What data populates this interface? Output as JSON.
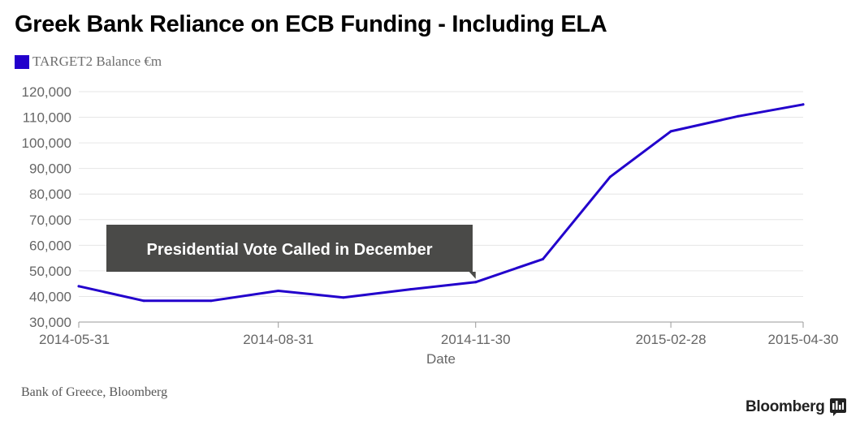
{
  "title": "Greek Bank Reliance on ECB Funding - Including ELA",
  "source": "Bank of Greece, Bloomberg",
  "brand": "Bloomberg",
  "colors": {
    "series": "#2200cc",
    "annotation_bg": "#4a4a48",
    "grid": "#e6e6e6",
    "axis": "#999999"
  },
  "icons": {
    "brand_logo": "bloomberg-chart-icon"
  },
  "chart_data": {
    "type": "line",
    "title": "Greek Bank Reliance on ECB Funding - Including ELA",
    "xlabel": "Date",
    "ylabel": "",
    "ylim": [
      30000,
      120000
    ],
    "xlim": [
      "2014-05-31",
      "2015-04-30"
    ],
    "yticks": [
      "30,000",
      "40,000",
      "50,000",
      "60,000",
      "70,000",
      "80,000",
      "90,000",
      "100,000",
      "110,000",
      "120,000"
    ],
    "xticks": [
      "2014-05-31",
      "2014-08-31",
      "2014-11-30",
      "2015-02-28",
      "2015-04-30"
    ],
    "grid": true,
    "legend_position": "top-left",
    "series": [
      {
        "name": "TARGET2 Balance €m",
        "color": "#2200cc",
        "x": [
          "2014-05-31",
          "2014-06-30",
          "2014-07-31",
          "2014-08-31",
          "2014-09-30",
          "2014-10-31",
          "2014-11-30",
          "2014-12-31",
          "2015-01-31",
          "2015-02-28",
          "2015-03-31",
          "2015-04-30"
        ],
        "values": [
          44000,
          38300,
          38300,
          42200,
          39600,
          42800,
          45600,
          54600,
          86700,
          104500,
          110400,
          115000
        ]
      }
    ],
    "annotations": [
      {
        "text": "Presidential Vote Called in December",
        "x": "2014-11-30",
        "y": 45600
      }
    ]
  }
}
